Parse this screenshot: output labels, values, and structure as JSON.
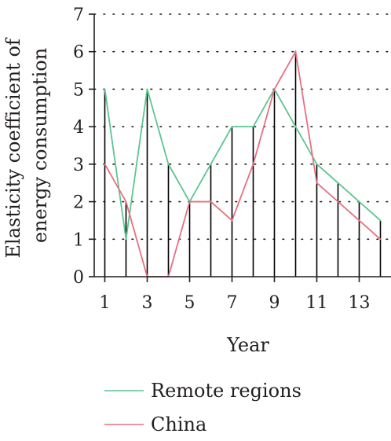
{
  "chart_data": {
    "type": "line",
    "title": "",
    "xlabel": "Year",
    "ylabel_lines": [
      "Elasticity coefficient of",
      "energy consumption"
    ],
    "x": [
      1,
      2,
      3,
      4,
      5,
      6,
      7,
      8,
      9,
      10,
      11,
      12,
      13,
      14
    ],
    "x_tick_labels": [
      "1",
      "3",
      "5",
      "7",
      "9",
      "11",
      "13"
    ],
    "y_tick_labels": [
      "0",
      "1",
      "2",
      "3",
      "4",
      "5",
      "6",
      "7"
    ],
    "xlim": [
      0.5,
      14.5
    ],
    "ylim": [
      0,
      7
    ],
    "grid": "dotted horizontal",
    "stems": "vertical black lines from 0 to the higher of the two series at each year",
    "legend_position": "bottom",
    "series": [
      {
        "name": "Remote regions",
        "color": "#5cc592",
        "values": [
          5,
          1,
          5,
          3,
          2,
          3,
          4,
          4,
          5,
          4,
          3,
          2.5,
          2,
          1.5
        ]
      },
      {
        "name": "China",
        "color": "#e8707f",
        "values": [
          3,
          2,
          0,
          0,
          2,
          2,
          1.5,
          3,
          5,
          6,
          2.5,
          2,
          1.5,
          1
        ]
      }
    ]
  }
}
